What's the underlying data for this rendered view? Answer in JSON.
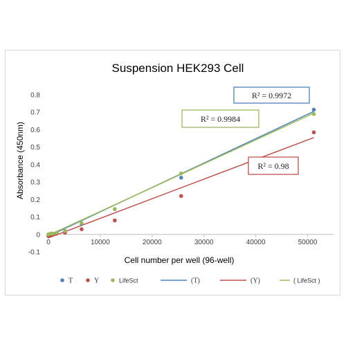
{
  "chart_data": {
    "type": "scatter",
    "title": "Suspension HEK293 Cell",
    "xlabel": "Cell number per well (96-well)",
    "ylabel": "Absorbance (450nm)",
    "xlim": [
      0,
      55000
    ],
    "ylim": [
      -0.1,
      0.8
    ],
    "xticks": [
      0,
      10000,
      20000,
      30000,
      40000,
      50000
    ],
    "yticks": [
      -0.1,
      0,
      0.1,
      0.2,
      0.3,
      0.4,
      0.5,
      0.6,
      0.7,
      0.8
    ],
    "grid": false,
    "legend_position": "bottom",
    "series": [
      {
        "name": "T",
        "color": "#4f81bd",
        "x": [
          0,
          400,
          800,
          1600,
          3200,
          6400,
          12800,
          25600,
          51200
        ],
        "y": [
          0.0,
          0.0,
          0.005,
          0.01,
          0.02,
          0.06,
          0.145,
          0.325,
          0.715
        ],
        "trendline": {
          "label": "(T)",
          "r2": "R² = 0.9972",
          "endpoints": [
            [
              0,
              -0.01
            ],
            [
              51200,
              0.705
            ]
          ]
        }
      },
      {
        "name": "Y",
        "color": "#c0504d",
        "x": [
          0,
          400,
          800,
          1600,
          3200,
          6400,
          12800,
          25600,
          51200
        ],
        "y": [
          -0.01,
          -0.005,
          0.0,
          0.005,
          0.01,
          0.03,
          0.08,
          0.22,
          0.585
        ],
        "trendline": {
          "label": "(Y)",
          "r2": "R² = 0.98",
          "endpoints": [
            [
              0,
              -0.02
            ],
            [
              51200,
              0.555
            ]
          ]
        }
      },
      {
        "name": "LifeSct",
        "color": "#9bbb59",
        "x": [
          0,
          400,
          800,
          1600,
          3200,
          6400,
          12800,
          25600,
          51200
        ],
        "y": [
          0.0,
          0.005,
          0.005,
          0.01,
          0.02,
          0.065,
          0.145,
          0.35,
          0.69
        ],
        "trendline": {
          "label": "( LifeSct )",
          "r2": "R² = 0.9984",
          "endpoints": [
            [
              0,
              -0.005
            ],
            [
              51200,
              0.695
            ]
          ]
        }
      }
    ]
  }
}
